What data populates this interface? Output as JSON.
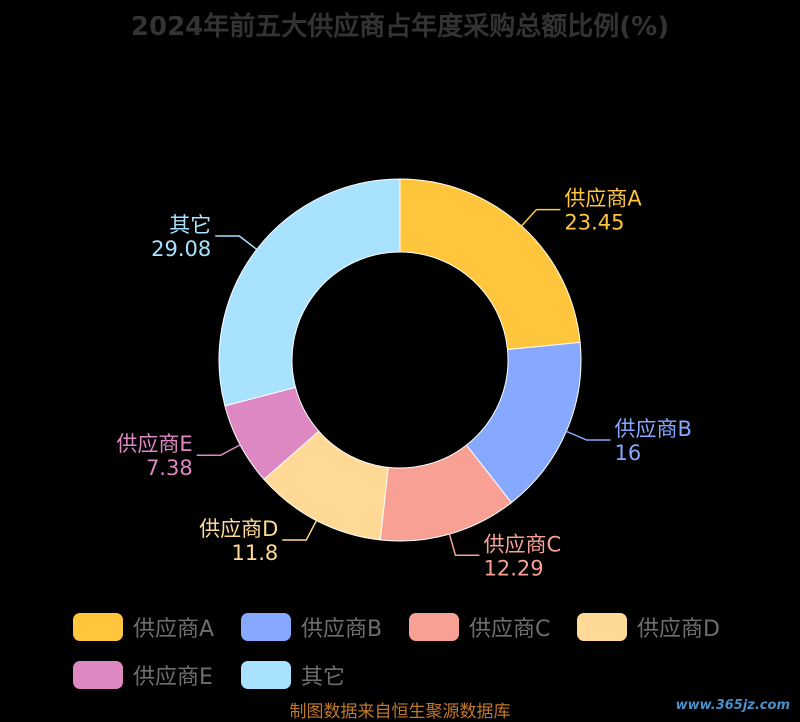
{
  "chart_data": {
    "type": "pie",
    "title": "2024年前五大供应商占年度采购总额比例(%)",
    "categories": [
      "供应商A",
      "供应商B",
      "供应商C",
      "供应商D",
      "供应商E",
      "其它"
    ],
    "values": [
      23.45,
      16,
      12.29,
      11.8,
      7.38,
      29.08
    ],
    "value_labels": [
      "23.45",
      "16",
      "12.29",
      "11.8",
      "7.38",
      "29.08"
    ],
    "colors": [
      "#ffc53d",
      "#87a8ff",
      "#f9a094",
      "#ffd995",
      "#dd88c3",
      "#a8e2ff"
    ],
    "donut": true,
    "legend_position": "bottom"
  },
  "footer": {
    "source": "制图数据来自恒生聚源数据库",
    "watermark": "www.365jz.com"
  }
}
